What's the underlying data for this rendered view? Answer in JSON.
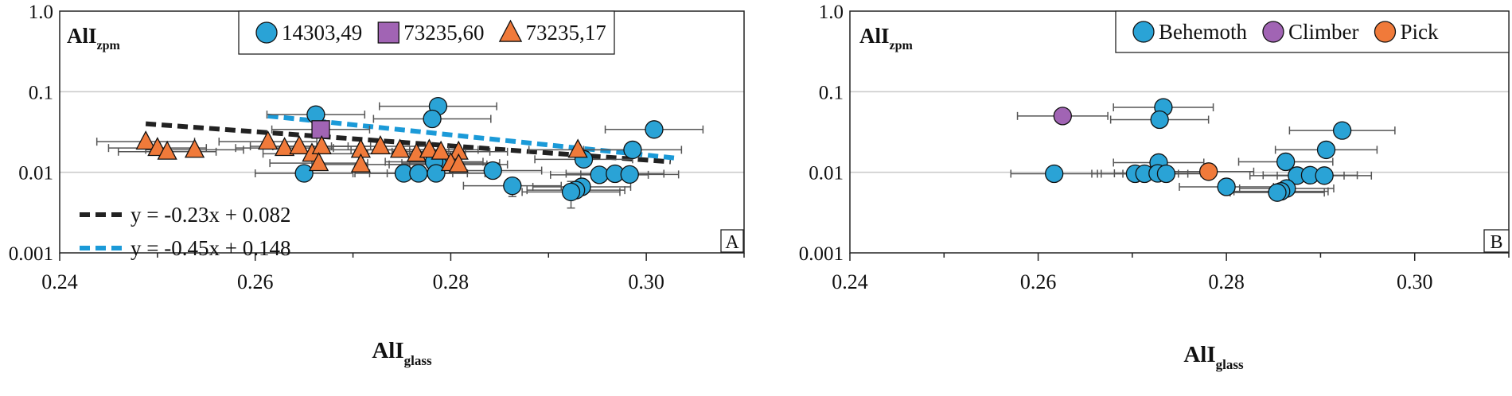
{
  "figure": {
    "colors": {
      "blue": "#2aa3d6",
      "purple": "#a164b4",
      "orange": "#f07a3a",
      "black": "#000000",
      "grid": "#c8c8c8",
      "fit_black": "#222222",
      "fit_blue": "#1b9ad8",
      "errorbar": "#555555"
    }
  },
  "chart_data": [
    {
      "type": "scatter",
      "panel_label": "A",
      "ylabel": "AlI",
      "ylabel_sub": "zpm",
      "xlabel": "AlI",
      "xlabel_sub": "glass",
      "xlim": [
        0.24,
        0.31
      ],
      "ylim": [
        0.001,
        1.0
      ],
      "yscale": "log",
      "x_ticks": [
        "0.24",
        "0.26",
        "0.28",
        "0.30"
      ],
      "x_tick_values": [
        0.24,
        0.26,
        0.28,
        0.3
      ],
      "y_ticks": [
        "0.001",
        "0.01",
        "0.1",
        "1.0"
      ],
      "y_tick_values": [
        0.001,
        0.01,
        0.1,
        1.0
      ],
      "grid": "horizontal",
      "legend_position": "top-right",
      "series": [
        {
          "name": "14303,49",
          "marker": "circle",
          "color": "#2aa3d6",
          "points": [
            {
              "x": 0.2662,
              "y": 0.052,
              "xerr": 0.005
            },
            {
              "x": 0.2787,
              "y": 0.066,
              "xerr": 0.006
            },
            {
              "x": 0.2781,
              "y": 0.046,
              "xerr": 0.006
            },
            {
              "x": 0.3008,
              "y": 0.034,
              "xerr": 0.005
            },
            {
              "x": 0.2986,
              "y": 0.019,
              "xerr": 0.005
            },
            {
              "x": 0.2787,
              "y": 0.0125,
              "xerr": 0.005
            },
            {
              "x": 0.2783,
              "y": 0.0135,
              "xerr": 0.005
            },
            {
              "x": 0.265,
              "y": 0.0097,
              "xerr": 0.005
            },
            {
              "x": 0.2752,
              "y": 0.0097,
              "xerr": 0.005
            },
            {
              "x": 0.2767,
              "y": 0.0097,
              "xerr": 0.005
            },
            {
              "x": 0.2785,
              "y": 0.0097,
              "xerr": 0.005
            },
            {
              "x": 0.2843,
              "y": 0.0105,
              "xerr": 0.005
            },
            {
              "x": 0.2936,
              "y": 0.0145,
              "xerr": 0.005
            },
            {
              "x": 0.2952,
              "y": 0.0093,
              "xerr": 0.005
            },
            {
              "x": 0.2968,
              "y": 0.0096,
              "xerr": 0.005
            },
            {
              "x": 0.2983,
              "y": 0.0094,
              "xerr": 0.005
            },
            {
              "x": 0.2863,
              "y": 0.0068,
              "xerr": 0.005,
              "yerr_lo": 0.005,
              "yerr_hi": 0.0082
            },
            {
              "x": 0.2934,
              "y": 0.0066,
              "xerr": 0.005
            },
            {
              "x": 0.2928,
              "y": 0.006,
              "xerr": 0.005
            },
            {
              "x": 0.2923,
              "y": 0.0057,
              "xerr": 0.005,
              "yerr_lo": 0.0036,
              "yerr_hi": 0.0077
            }
          ]
        },
        {
          "name": "73235,60",
          "marker": "square",
          "color": "#a164b4",
          "points": [
            {
              "x": 0.2667,
              "y": 0.034,
              "xerr": 0.005
            }
          ]
        },
        {
          "name": "73235,17",
          "marker": "triangle",
          "color": "#f07a3a",
          "points": [
            {
              "x": 0.2488,
              "y": 0.024,
              "xerr": 0.005
            },
            {
              "x": 0.25,
              "y": 0.02,
              "xerr": 0.005
            },
            {
              "x": 0.251,
              "y": 0.018,
              "xerr": 0.005
            },
            {
              "x": 0.2538,
              "y": 0.019,
              "xerr": 0.005
            },
            {
              "x": 0.2613,
              "y": 0.024,
              "xerr": 0.005
            },
            {
              "x": 0.263,
              "y": 0.02,
              "xerr": 0.005
            },
            {
              "x": 0.2645,
              "y": 0.021,
              "xerr": 0.005
            },
            {
              "x": 0.2658,
              "y": 0.017,
              "xerr": 0.005
            },
            {
              "x": 0.2668,
              "y": 0.021,
              "xerr": 0.005
            },
            {
              "x": 0.2665,
              "y": 0.013,
              "xerr": 0.005
            },
            {
              "x": 0.2708,
              "y": 0.019,
              "xerr": 0.005
            },
            {
              "x": 0.2708,
              "y": 0.0125,
              "xerr": 0.005
            },
            {
              "x": 0.2728,
              "y": 0.021,
              "xerr": 0.005
            },
            {
              "x": 0.2748,
              "y": 0.019,
              "xerr": 0.005
            },
            {
              "x": 0.2765,
              "y": 0.017,
              "xerr": 0.005
            },
            {
              "x": 0.2778,
              "y": 0.019,
              "xerr": 0.005
            },
            {
              "x": 0.279,
              "y": 0.018,
              "xerr": 0.005
            },
            {
              "x": 0.2808,
              "y": 0.018,
              "xerr": 0.005
            },
            {
              "x": 0.28,
              "y": 0.013,
              "xerr": 0.005
            },
            {
              "x": 0.2808,
              "y": 0.0125,
              "xerr": 0.005
            },
            {
              "x": 0.293,
              "y": 0.019,
              "xerr": 0.005
            }
          ]
        }
      ],
      "fit_lines": [
        {
          "label": "y = -0.23x + 0.082",
          "color": "#222222",
          "x": [
            0.2488,
            0.3025
          ],
          "y": [
            0.04,
            0.0135
          ]
        },
        {
          "label": "y = -0.45x + 0.148",
          "color": "#1b9ad8",
          "x": [
            0.2613,
            0.303
          ],
          "y": [
            0.05,
            0.015
          ]
        }
      ]
    },
    {
      "type": "scatter",
      "panel_label": "B",
      "ylabel": "AlI",
      "ylabel_sub": "zpm",
      "xlabel": "AlI",
      "xlabel_sub": "glass",
      "xlim": [
        0.24,
        0.31
      ],
      "ylim": [
        0.001,
        1.0
      ],
      "yscale": "log",
      "x_ticks": [
        "0.24",
        "0.26",
        "0.28",
        "0.30"
      ],
      "x_tick_values": [
        0.24,
        0.26,
        0.28,
        0.3
      ],
      "y_ticks": [
        "0.001",
        "0.01",
        "0.1",
        "1.0"
      ],
      "y_tick_values": [
        0.001,
        0.01,
        0.1,
        1.0
      ],
      "grid": "horizontal",
      "legend_position": "top-right",
      "series": [
        {
          "name": "Behemoth",
          "marker": "circle",
          "color": "#2aa3d6",
          "points": [
            {
              "x": 0.2733,
              "y": 0.064,
              "xerr": 0.0053
            },
            {
              "x": 0.2729,
              "y": 0.045,
              "xerr": 0.0052
            },
            {
              "x": 0.2923,
              "y": 0.033,
              "xerr": 0.0056
            },
            {
              "x": 0.2906,
              "y": 0.019,
              "xerr": 0.0054
            },
            {
              "x": 0.2863,
              "y": 0.0135,
              "xerr": 0.005
            },
            {
              "x": 0.2728,
              "y": 0.0132,
              "xerr": 0.0048
            },
            {
              "x": 0.2617,
              "y": 0.0096,
              "xerr": 0.0046
            },
            {
              "x": 0.2703,
              "y": 0.0096,
              "xerr": 0.0046
            },
            {
              "x": 0.2713,
              "y": 0.0096,
              "xerr": 0.0046
            },
            {
              "x": 0.2727,
              "y": 0.0097,
              "xerr": 0.0046
            },
            {
              "x": 0.2736,
              "y": 0.0096,
              "xerr": 0.0046
            },
            {
              "x": 0.2875,
              "y": 0.0091,
              "xerr": 0.005
            },
            {
              "x": 0.2889,
              "y": 0.0092,
              "xerr": 0.005
            },
            {
              "x": 0.2904,
              "y": 0.0091,
              "xerr": 0.005
            },
            {
              "x": 0.28,
              "y": 0.0066,
              "xerr": 0.005
            },
            {
              "x": 0.2864,
              "y": 0.0063,
              "xerr": 0.005
            },
            {
              "x": 0.2858,
              "y": 0.0058,
              "xerr": 0.005
            },
            {
              "x": 0.2854,
              "y": 0.0056,
              "xerr": 0.005
            }
          ]
        },
        {
          "name": "Climber",
          "marker": "circle",
          "color": "#a164b4",
          "points": [
            {
              "x": 0.2626,
              "y": 0.05,
              "xerr": 0.0048
            }
          ]
        },
        {
          "name": "Pick",
          "marker": "circle",
          "color": "#f07a3a",
          "points": [
            {
              "x": 0.2781,
              "y": 0.0102,
              "xerr": 0.0048
            }
          ]
        }
      ]
    }
  ]
}
